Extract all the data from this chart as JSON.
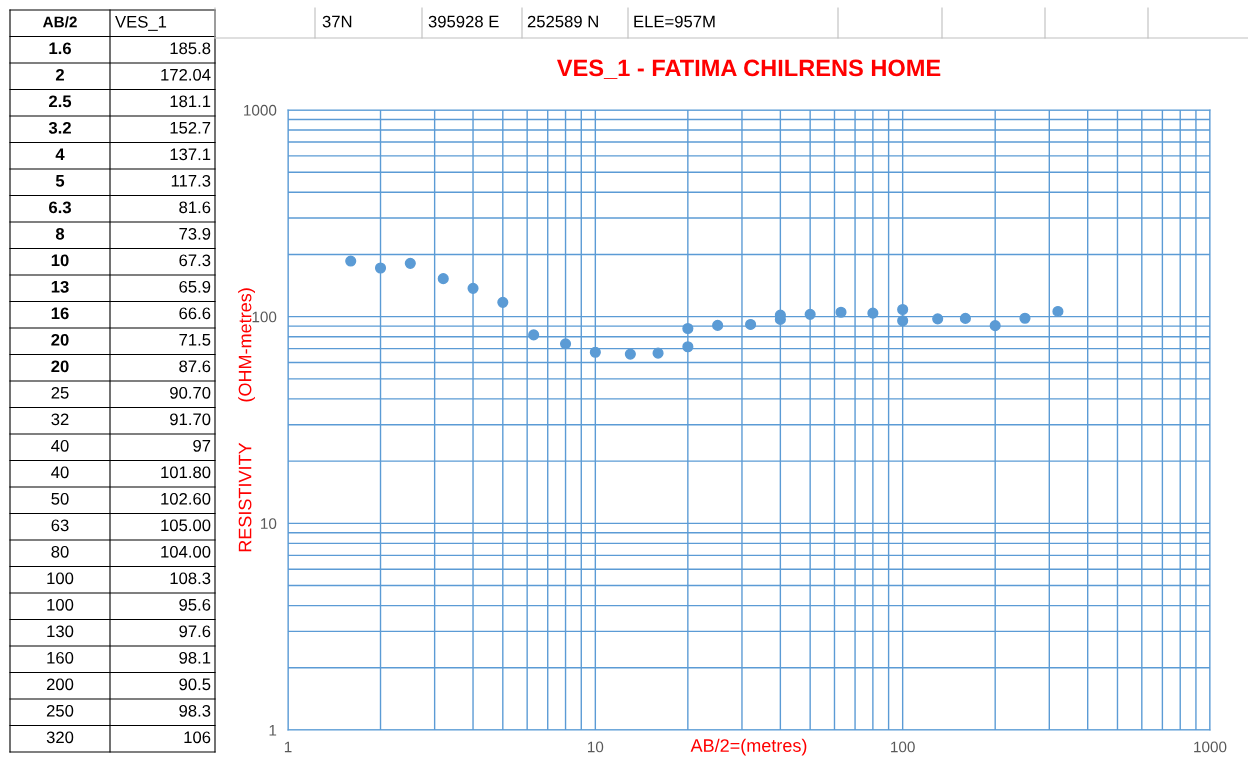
{
  "chart_data": {
    "type": "scatter",
    "title": "VES_1 - FATIMA CHILRENS HOME",
    "xlabel": "AB/2=(metres)",
    "ylabel": "RESISTIVITY        (OHM-metres)",
    "annotations": [
      "AB/2",
      "37N",
      "395928 E",
      "252589 N",
      "ELE=957M",
      "1.6",
      "2",
      "2.5",
      "3.2",
      "4",
      "5",
      "6.3",
      "8",
      "10",
      "13",
      "16",
      "20",
      "20",
      "25",
      "32",
      "40",
      "40",
      "50",
      "63",
      "80",
      "100",
      "100",
      "130",
      "160",
      "200",
      "250",
      "320",
      "185.8",
      "172.04",
      "181.1",
      "152.7",
      "137.1",
      "117.3",
      "81.6",
      "73.9",
      "67.3",
      "65.9",
      "66.6",
      "71.5",
      "87.6",
      "90.70",
      "91.70",
      "97",
      "101.80",
      "102.60",
      "105.00",
      "104.00",
      "108.3",
      "95.6",
      "97.6",
      "98.1",
      "90.5",
      "98.3",
      "106"
    ],
    "x": [
      1.6,
      2,
      2.5,
      3.2,
      4,
      5,
      6.3,
      8,
      10,
      13,
      16,
      20,
      20,
      25,
      32,
      40,
      40,
      50,
      63,
      80,
      100,
      100,
      130,
      160,
      200,
      250,
      320
    ],
    "series": [
      {
        "name": "VES_1",
        "color": "#5b9bd5",
        "values": [
          185.8,
          172.04,
          181.1,
          152.7,
          137.1,
          117.3,
          81.6,
          73.9,
          67.3,
          65.9,
          66.6,
          71.5,
          87.6,
          90.7,
          91.7,
          97,
          101.8,
          102.6,
          105.0,
          104.0,
          108.3,
          95.6,
          97.6,
          98.1,
          90.5,
          98.3,
          106
        ]
      }
    ],
    "log": "xy",
    "xlim": [
      1,
      1000
    ],
    "ylim": [
      1,
      1000
    ],
    "xticks": [
      1,
      {
        "value": 2,
        "label": null
      },
      {
        "value": 3,
        "label": null
      },
      {
        "value": 4,
        "label": null
      },
      {
        "value": 5,
        "label": null
      },
      {
        "value": 6,
        "label": null
      },
      {
        "value": 7,
        "label": null
      },
      {
        "value": 8,
        "label": null
      },
      {
        "value": 9,
        "label": null
      },
      10,
      {
        "value": 20,
        "label": null
      },
      {
        "value": 30,
        "label": null
      },
      {
        "value": 40,
        "label": null
      },
      {
        "value": 50,
        "label": null
      },
      {
        "value": 60,
        "label": null
      },
      {
        "value": 70,
        "label": null
      },
      {
        "value": 80,
        "label": null
      },
      {
        "value": 90,
        "label": null
      },
      100,
      {
        "value": 200,
        "label": null
      },
      {
        "value": 300,
        "label": null
      },
      {
        "value": 400,
        "label": null
      },
      {
        "value": 500,
        "label": null
      },
      {
        "value": 600,
        "label": null
      },
      {
        "value": 700,
        "label": null
      },
      {
        "value": 800,
        "label": null
      },
      {
        "value": 900,
        "label": null
      },
      1000
    ],
    "yticks": [
      1,
      {
        "value": 2,
        "label": null
      },
      {
        "value": 3,
        "label": null
      },
      {
        "value": 4,
        "label": null
      },
      {
        "value": 5,
        "label": null
      },
      {
        "value": 6,
        "label": null
      },
      {
        "value": 7,
        "label": null
      },
      {
        "value": 8,
        "label": null
      },
      {
        "value": 9,
        "label": null
      },
      10,
      {
        "value": 20,
        "label": null
      },
      {
        "value": 30,
        "label": null
      },
      {
        "value": 40,
        "label": null
      },
      {
        "value": 50,
        "label": null
      },
      {
        "value": 60,
        "label": null
      },
      {
        "value": 70,
        "label": null
      },
      {
        "value": 80,
        "label": null
      },
      {
        "value": 90,
        "label": null
      },
      100,
      {
        "value": 200,
        "label": null
      },
      {
        "value": 300,
        "label": null
      },
      {
        "value": 400,
        "label": null
      },
      {
        "value": 500,
        "label": null
      },
      {
        "value": 600,
        "label": null
      },
      {
        "value": 700,
        "label": null
      },
      {
        "value": 800,
        "label": null
      },
      {
        "value": 900,
        "label": null
      },
      1000
    ],
    "grid": true,
    "marker": "circle",
    "legend": false
  }
}
